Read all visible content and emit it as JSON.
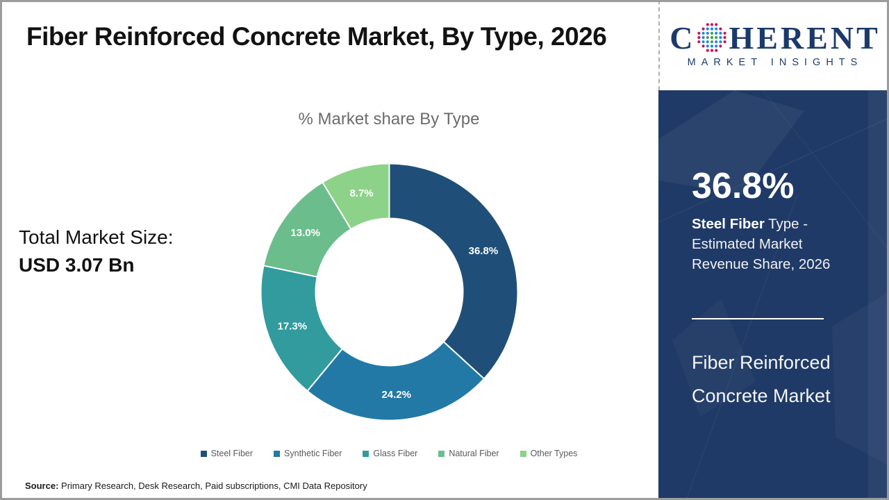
{
  "title": "Fiber Reinforced Concrete Market, By Type, 2026",
  "logo": {
    "brand_first_letter": "C",
    "brand_rest": "HERENT",
    "subtitle": "MARKET INSIGHTS",
    "navy": "#1b3a6b",
    "globe_icon": "dotted-globe-icon",
    "globe_dot_colors": [
      "#43a047",
      "#1e88e5",
      "#c2185b"
    ]
  },
  "chart": {
    "subtitle": "% Market share By Type"
  },
  "chart_data": {
    "type": "pie",
    "donut": true,
    "title": "% Market share By Type",
    "categories": [
      "Steel Fiber",
      "Synthetic Fiber",
      "Glass Fiber",
      "Natural Fiber",
      "Other Types"
    ],
    "values": [
      36.8,
      24.2,
      17.3,
      13.0,
      8.7
    ],
    "labels": [
      "36.8%",
      "24.2%",
      "17.3%",
      "13.0%",
      "8.7%"
    ],
    "colors": [
      "#1f4f78",
      "#2279a6",
      "#319b9e",
      "#6bbe8c",
      "#8dd289"
    ],
    "start_angle_deg": 0,
    "direction": "clockwise",
    "legend_position": "bottom"
  },
  "left_panel": {
    "market_size_label": "Total Market Size:",
    "market_size_value": "USD 3.07 Bn"
  },
  "sidebar": {
    "headline_value": "36.8%",
    "headline_bold": "Steel Fiber",
    "headline_rest": " Type - Estimated Market Revenue Share, 2026",
    "footer_title": "Fiber Reinforced Concrete Market",
    "background_color": "#1f3a66"
  },
  "source": {
    "label": "Source:",
    "text": " Primary Research, Desk Research, Paid subscriptions, CMI Data Repository"
  }
}
